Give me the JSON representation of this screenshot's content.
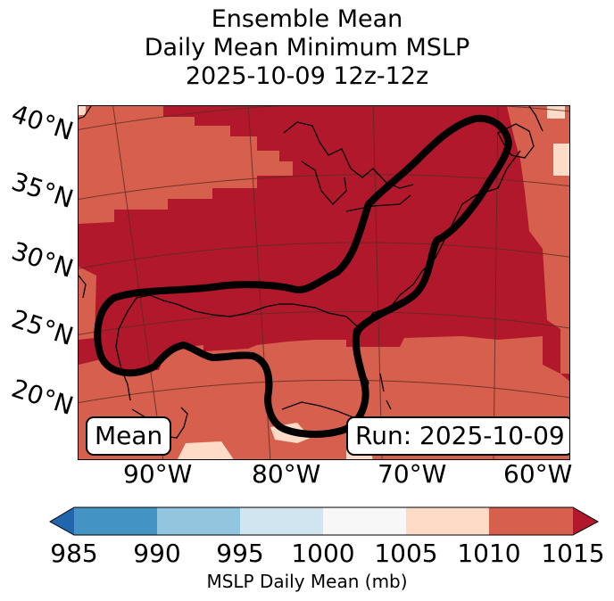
{
  "title": {
    "line1": "Ensemble Mean",
    "line2": "Daily Mean Minimum MSLP",
    "line3": "2025-10-09 12z-12z"
  },
  "map": {
    "lat_labels": [
      "40°N",
      "35°N",
      "30°N",
      "25°N",
      "20°N"
    ],
    "lon_labels": [
      "90°W",
      "80°W",
      "70°W",
      "60°W"
    ],
    "panel_label": "Mean",
    "run_label": "Run: 2025-10-09",
    "fill_colors": {
      "dark_red": "#b2182b",
      "red": "#d6604d",
      "light_peach": "#fddbc7",
      "white": "#f7f7f7"
    }
  },
  "colorbar": {
    "title": "MSLP Daily Mean (mb)",
    "ticks": [
      "985",
      "990",
      "995",
      "1000",
      "1005",
      "1010",
      "1015"
    ],
    "colors": [
      "#2166ac",
      "#4393c3",
      "#92c5de",
      "#d1e5f0",
      "#f7f7f7",
      "#fddbc7",
      "#d6604d",
      "#b2182b"
    ]
  }
}
